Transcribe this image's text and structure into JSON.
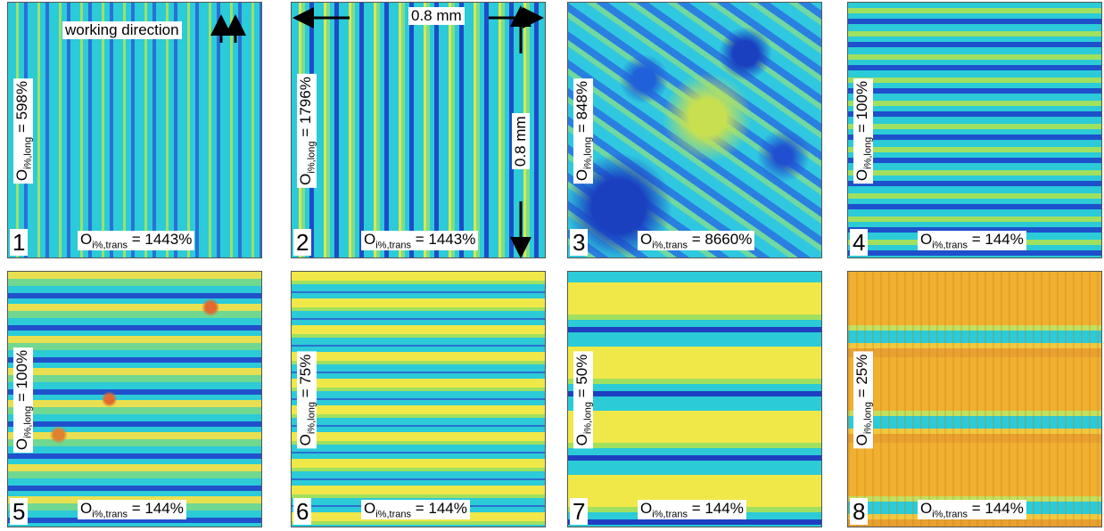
{
  "annotations": {
    "working_direction": "working direction",
    "scale_x": "0.8 mm",
    "scale_y": "0.8 mm"
  },
  "panels": [
    {
      "number": "1",
      "long": {
        "symbol": "O",
        "subscript": "i%,long",
        "value": "= 598%"
      },
      "trans": {
        "symbol": "O",
        "subscript": "i%,trans",
        "value": "= 1443%"
      }
    },
    {
      "number": "2",
      "long": {
        "symbol": "O",
        "subscript": "i%,long",
        "value": "= 1796%"
      },
      "trans": {
        "symbol": "O",
        "subscript": "i%,trans",
        "value": "= 1443%"
      }
    },
    {
      "number": "3",
      "long": {
        "symbol": "O",
        "subscript": "i%,long",
        "value": "= 848%"
      },
      "trans": {
        "symbol": "O",
        "subscript": "i%,trans",
        "value": "= 8660%"
      }
    },
    {
      "number": "4",
      "long": {
        "symbol": "O",
        "subscript": "i%,long",
        "value": "= 100%"
      },
      "trans": {
        "symbol": "O",
        "subscript": "i%,trans",
        "value": "= 144%"
      }
    },
    {
      "number": "5",
      "long": {
        "symbol": "O",
        "subscript": "i%,long",
        "value": "= 100%"
      },
      "trans": {
        "symbol": "O",
        "subscript": "i%,trans",
        "value": "= 144%"
      }
    },
    {
      "number": "6",
      "long": {
        "symbol": "O",
        "subscript": "i%,long",
        "value": "= 75%"
      },
      "trans": {
        "symbol": "O",
        "subscript": "i%,trans",
        "value": "= 144%"
      }
    },
    {
      "number": "7",
      "long": {
        "symbol": "O",
        "subscript": "i%,long",
        "value": "= 50%"
      },
      "trans": {
        "symbol": "O",
        "subscript": "i%,trans",
        "value": "= 144%"
      }
    },
    {
      "number": "8",
      "long": {
        "symbol": "O",
        "subscript": "i%,long",
        "value": "= 25%"
      },
      "trans": {
        "symbol": "O",
        "subscript": "i%,trans",
        "value": "= 144%"
      }
    }
  ]
}
